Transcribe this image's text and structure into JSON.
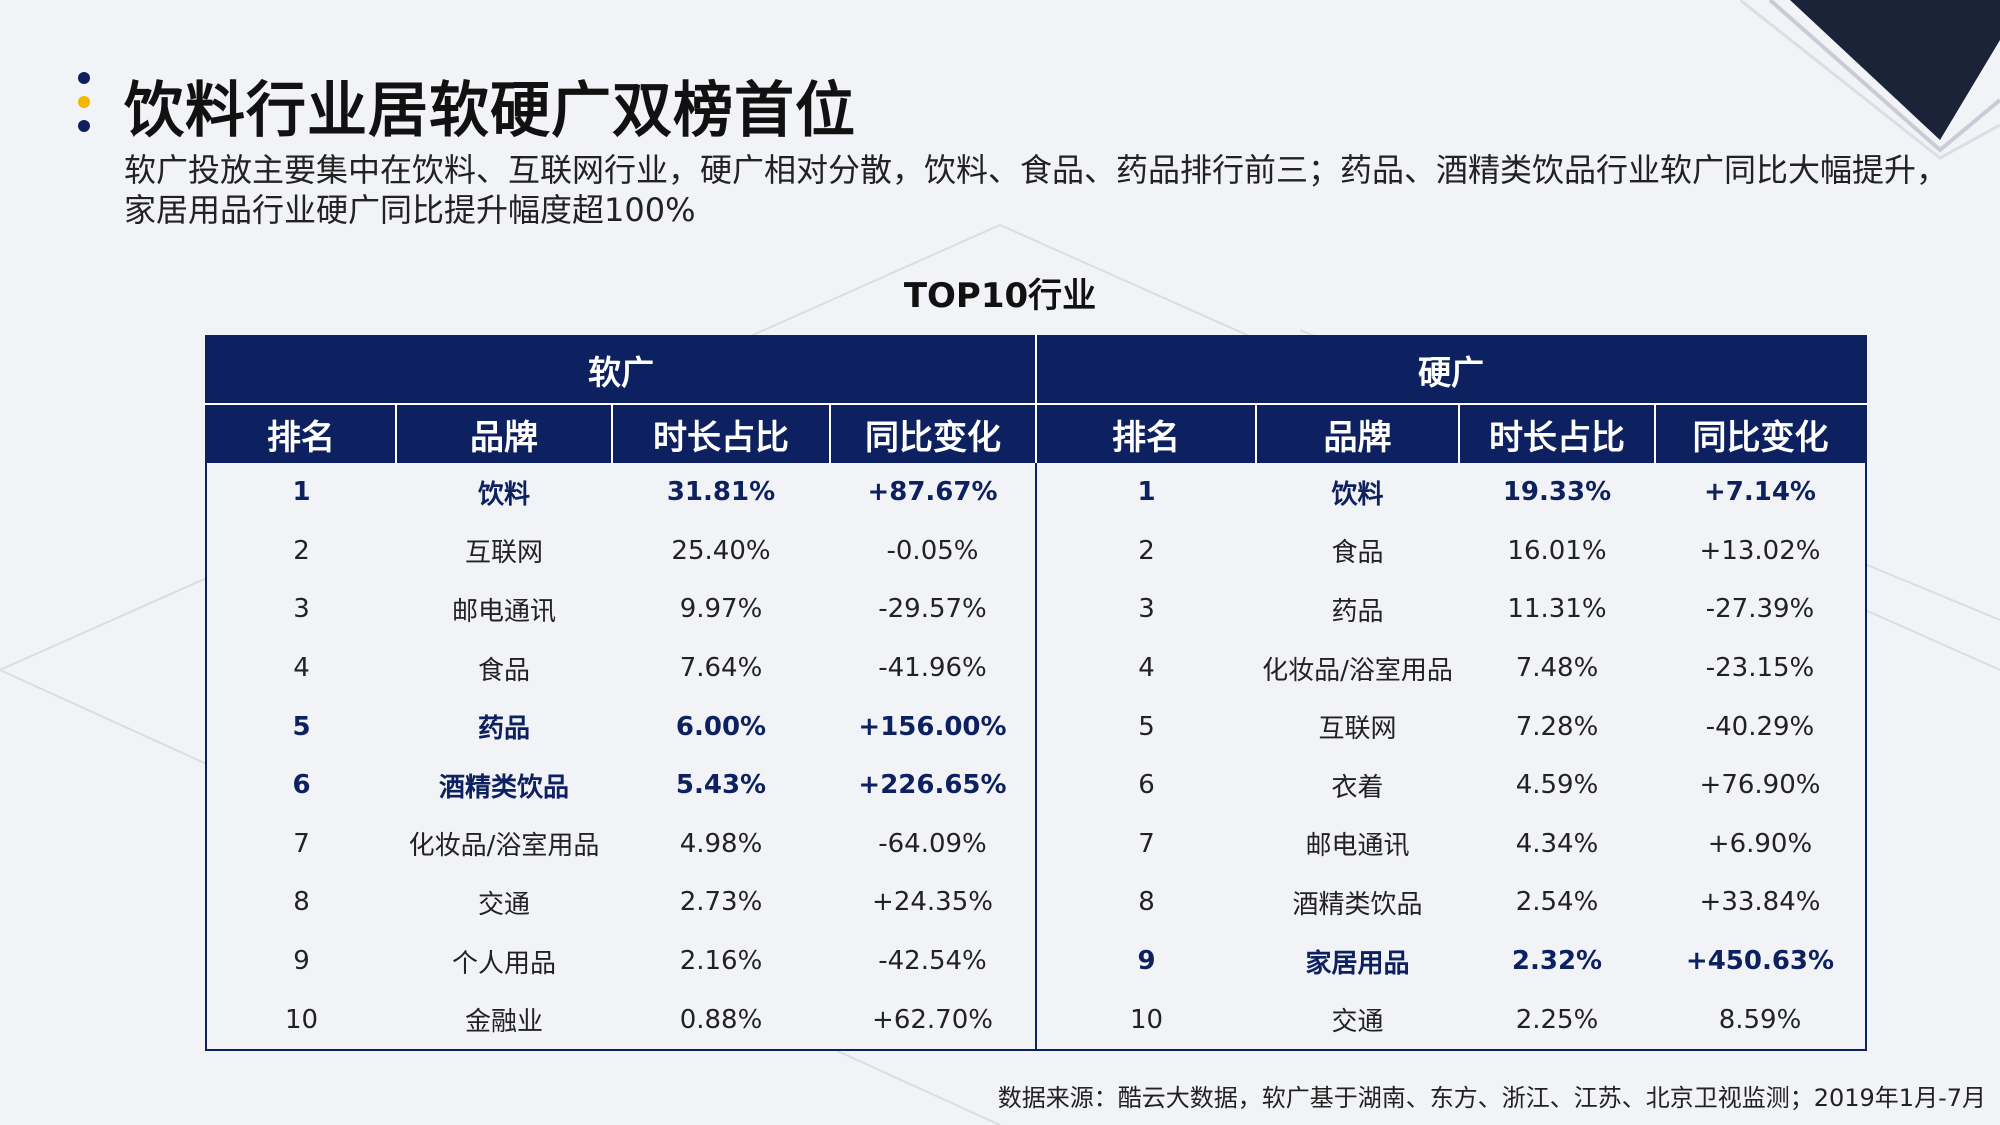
{
  "title": "饮料行业居软硬广双榜首位",
  "subtitle": "软广投放主要集中在饮料、互联网行业，硬广相对分散，饮料、食品、药品排行前三；药品、酒精类饮品行业软广同比大幅提升，家居用品行业硬广同比提升幅度超100%",
  "colors": {
    "navy": "#0d2160",
    "accent_yellow": "#f5b800",
    "highlight_text": "#0d2160"
  },
  "table": {
    "caption": "TOP10行业",
    "group_soft": "软广",
    "group_hard": "硬广",
    "headers": [
      "排名",
      "品牌",
      "时长占比",
      "同比变化",
      "排名",
      "品牌",
      "时长占比",
      "同比变化"
    ],
    "rows": [
      {
        "soft": [
          "1",
          "饮料",
          "31.81%",
          "+87.67%"
        ],
        "soft_hl": true,
        "hard": [
          "1",
          "饮料",
          "19.33%",
          "+7.14%"
        ],
        "hard_hl": true
      },
      {
        "soft": [
          "2",
          "互联网",
          "25.40%",
          "-0.05%"
        ],
        "soft_hl": false,
        "hard": [
          "2",
          "食品",
          "16.01%",
          "+13.02%"
        ],
        "hard_hl": false
      },
      {
        "soft": [
          "3",
          "邮电通讯",
          "9.97%",
          "-29.57%"
        ],
        "soft_hl": false,
        "hard": [
          "3",
          "药品",
          "11.31%",
          "-27.39%"
        ],
        "hard_hl": false
      },
      {
        "soft": [
          "4",
          "食品",
          "7.64%",
          "-41.96%"
        ],
        "soft_hl": false,
        "hard": [
          "4",
          "化妆品/浴室用品",
          "7.48%",
          "-23.15%"
        ],
        "hard_hl": false
      },
      {
        "soft": [
          "5",
          "药品",
          "6.00%",
          "+156.00%"
        ],
        "soft_hl": true,
        "hard": [
          "5",
          "互联网",
          "7.28%",
          "-40.29%"
        ],
        "hard_hl": false
      },
      {
        "soft": [
          "6",
          "酒精类饮品",
          "5.43%",
          "+226.65%"
        ],
        "soft_hl": true,
        "hard": [
          "6",
          "衣着",
          "4.59%",
          "+76.90%"
        ],
        "hard_hl": false
      },
      {
        "soft": [
          "7",
          "化妆品/浴室用品",
          "4.98%",
          "-64.09%"
        ],
        "soft_hl": false,
        "hard": [
          "7",
          "邮电通讯",
          "4.34%",
          "+6.90%"
        ],
        "hard_hl": false
      },
      {
        "soft": [
          "8",
          "交通",
          "2.73%",
          "+24.35%"
        ],
        "soft_hl": false,
        "hard": [
          "8",
          "酒精类饮品",
          "2.54%",
          "+33.84%"
        ],
        "hard_hl": false
      },
      {
        "soft": [
          "9",
          "个人用品",
          "2.16%",
          "-42.54%"
        ],
        "soft_hl": false,
        "hard": [
          "9",
          "家居用品",
          "2.32%",
          "+450.63%"
        ],
        "hard_hl": true
      },
      {
        "soft": [
          "10",
          "金融业",
          "0.88%",
          "+62.70%"
        ],
        "soft_hl": false,
        "hard": [
          "10",
          "交通",
          "2.25%",
          "8.59%"
        ],
        "hard_hl": false
      }
    ]
  },
  "source": "数据来源：酷云大数据，软广基于湖南、东方、浙江、江苏、北京卫视监测；2019年1月-7月"
}
